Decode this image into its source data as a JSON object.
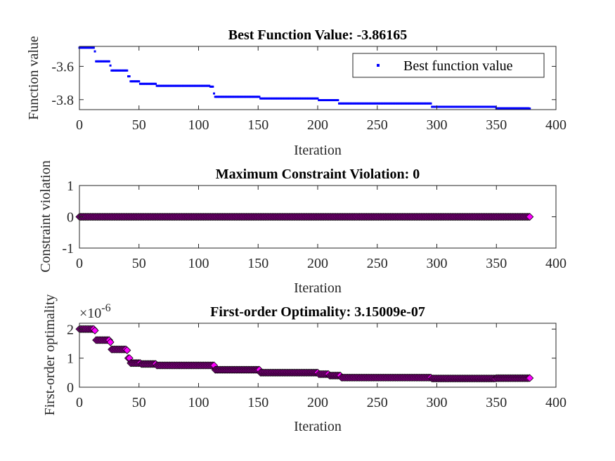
{
  "figure": {
    "background": "#ffffff"
  },
  "chart_data": [
    {
      "type": "scatter",
      "title": "Best Function Value: -3.86165",
      "xlabel": "Iteration",
      "ylabel": "Function value",
      "xlim": [
        0,
        400
      ],
      "ylim": [
        -3.86,
        -3.48
      ],
      "xticks": [
        "0",
        "50",
        "100",
        "150",
        "200",
        "250",
        "300",
        "350",
        "400"
      ],
      "yticks": [
        {
          "value": -3.8,
          "label": "-3.8"
        },
        {
          "value": -3.6,
          "label": "-3.6"
        }
      ],
      "grid": false,
      "legend": {
        "placement": "top-right",
        "entries": [
          "Best function value"
        ]
      },
      "marker": "point",
      "color": "#0000ff",
      "series": [
        {
          "name": "Best function value",
          "steps": [
            [
              0,
              -3.488
            ],
            [
              13,
              -3.51
            ],
            [
              14,
              -3.57
            ],
            [
              26,
              -3.595
            ],
            [
              27,
              -3.625
            ],
            [
              41,
              -3.66
            ],
            [
              43,
              -3.69
            ],
            [
              51,
              -3.705
            ],
            [
              65,
              -3.717
            ],
            [
              110,
              -3.722
            ],
            [
              113,
              -3.763
            ],
            [
              114,
              -3.783
            ],
            [
              152,
              -3.793
            ],
            [
              201,
              -3.803
            ],
            [
              218,
              -3.823
            ],
            [
              296,
              -3.843
            ],
            [
              350,
              -3.852
            ],
            [
              378,
              -3.8535
            ]
          ],
          "x_end": 378
        }
      ]
    },
    {
      "type": "scatter",
      "title": "Maximum Constraint Violation: 0",
      "xlabel": "Iteration",
      "ylabel": "Constraint violation",
      "xlim": [
        0,
        400
      ],
      "ylim": [
        -1,
        1
      ],
      "xticks": [
        "0",
        "50",
        "100",
        "150",
        "200",
        "250",
        "300",
        "350",
        "400"
      ],
      "yticks": [
        {
          "value": -1,
          "label": "-1"
        },
        {
          "value": 0,
          "label": "0"
        },
        {
          "value": 1,
          "label": "1"
        }
      ],
      "grid": false,
      "marker": "diamond",
      "color": "#ff00ff",
      "series": [
        {
          "steps": [
            [
              0,
              0
            ]
          ],
          "x_end": 378
        }
      ]
    },
    {
      "type": "scatter",
      "title": "First-order Optimality: 3.15009e-07",
      "xlabel": "Iteration",
      "ylabel": "First-order optimality",
      "xlim": [
        0,
        400
      ],
      "ylim": [
        0,
        2.2
      ],
      "exponent_label": "×10",
      "exponent_power": "-6",
      "xticks": [
        "0",
        "50",
        "100",
        "150",
        "200",
        "250",
        "300",
        "350",
        "400"
      ],
      "yticks": [
        {
          "value": 0,
          "label": "0"
        },
        {
          "value": 1,
          "label": "1"
        },
        {
          "value": 2,
          "label": "2"
        }
      ],
      "grid": false,
      "marker": "diamond",
      "color": "#ff00ff",
      "series": [
        {
          "steps": [
            [
              0,
              2.0
            ],
            [
              13,
              1.95
            ],
            [
              14,
              1.62
            ],
            [
              26,
              1.55
            ],
            [
              27,
              1.3
            ],
            [
              40,
              1.27
            ],
            [
              41,
              1.0
            ],
            [
              43,
              0.83
            ],
            [
              52,
              0.8
            ],
            [
              65,
              0.75
            ],
            [
              114,
              0.6
            ],
            [
              152,
              0.5
            ],
            [
              201,
              0.45
            ],
            [
              210,
              0.4
            ],
            [
              220,
              0.33
            ],
            [
              296,
              0.3
            ],
            [
              350,
              0.31
            ],
            [
              378,
              0.315
            ]
          ],
          "x_end": 378
        }
      ]
    }
  ]
}
